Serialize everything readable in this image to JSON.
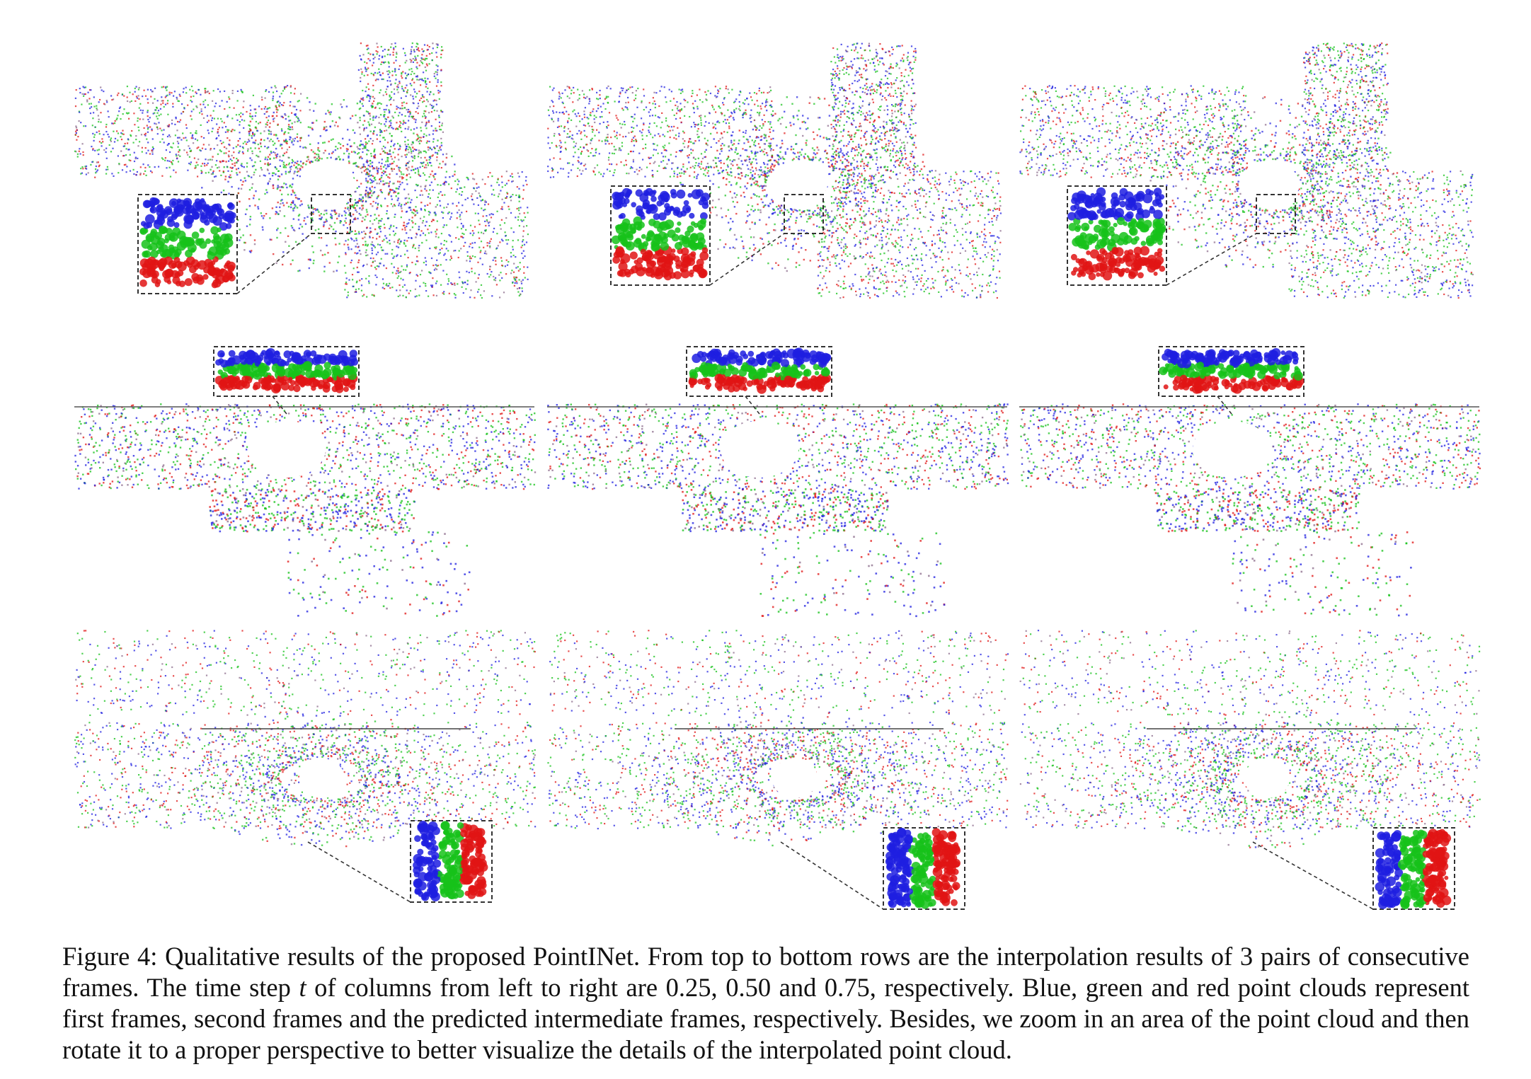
{
  "figure": {
    "caption": {
      "label": "Figure 4:",
      "text_before_t": " Qualitative results of the proposed PointINet. From top to bottom rows are the interpolation results of 3 pairs of consecutive frames. The time step ",
      "t_symbol": "t",
      "text_after_t": " of columns from left to right are 0.25, 0.50 and 0.75, respectively. Blue, green and red point clouds represent first frames, second frames and the predicted intermediate frames, respectively. Besides, we zoom in an area of the point cloud and then rotate it to a proper perspective to better visualize the details of the interpolated point cloud."
    },
    "rows": 3,
    "columns": 3,
    "point_colors": {
      "first_frame": "#1f1fe0",
      "second_frame": "#16c21a",
      "predicted_frame": "#e01414",
      "background_points": "#8a6a8a"
    }
  }
}
